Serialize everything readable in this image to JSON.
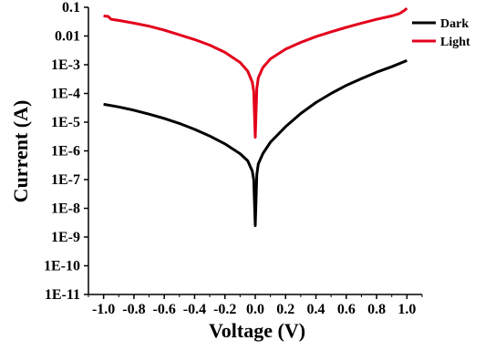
{
  "chart_data": {
    "type": "line",
    "xlabel": "Voltage (V)",
    "ylabel": "Current (A)",
    "x_scale": "linear",
    "y_scale": "log",
    "xlim": [
      -1.1,
      1.1
    ],
    "ylim": [
      1e-11,
      0.1
    ],
    "grid": false,
    "legend_position": "top-right",
    "x_tick_labels": [
      "-1.0",
      "-0.8",
      "-0.6",
      "-0.4",
      "-0.2",
      "0.0",
      "0.2",
      "0.4",
      "0.6",
      "0.8",
      "1.0"
    ],
    "y_tick_labels": [
      "0.1",
      "0.01",
      "1E-3",
      "1E-4",
      "1E-5",
      "1E-6",
      "1E-7",
      "1E-8",
      "1E-9",
      "1E-10",
      "1E-11"
    ],
    "series": [
      {
        "name": "Dark",
        "color": "#000000",
        "points": [
          [
            -1.0,
            4.2e-05
          ],
          [
            -0.9,
            3.4e-05
          ],
          [
            -0.8,
            2.6e-05
          ],
          [
            -0.7,
            1.9e-05
          ],
          [
            -0.6,
            1.35e-05
          ],
          [
            -0.5,
            9e-06
          ],
          [
            -0.4,
            5.6e-06
          ],
          [
            -0.3,
            3.3e-06
          ],
          [
            -0.2,
            1.75e-06
          ],
          [
            -0.1,
            8e-07
          ],
          [
            -0.05,
            4.5e-07
          ],
          [
            -0.02,
            2e-07
          ],
          [
            -0.01,
            1e-07
          ],
          [
            0.0,
            2.5e-09
          ],
          [
            0.01,
            1.5e-07
          ],
          [
            0.02,
            3.5e-07
          ],
          [
            0.05,
            8e-07
          ],
          [
            0.1,
            2e-06
          ],
          [
            0.2,
            7e-06
          ],
          [
            0.3,
            2e-05
          ],
          [
            0.4,
            4.8e-05
          ],
          [
            0.5,
            0.0001
          ],
          [
            0.6,
            0.00019
          ],
          [
            0.7,
            0.00033
          ],
          [
            0.8,
            0.00055
          ],
          [
            0.9,
            0.00085
          ],
          [
            1.0,
            0.0014
          ]
        ]
      },
      {
        "name": "Light",
        "color": "#e3001b",
        "points": [
          [
            -1.0,
            0.05
          ],
          [
            -0.97,
            0.048
          ],
          [
            -0.95,
            0.038
          ],
          [
            -0.9,
            0.035
          ],
          [
            -0.8,
            0.028
          ],
          [
            -0.7,
            0.022
          ],
          [
            -0.6,
            0.016
          ],
          [
            -0.5,
            0.011
          ],
          [
            -0.4,
            0.0075
          ],
          [
            -0.3,
            0.0048
          ],
          [
            -0.2,
            0.0027
          ],
          [
            -0.1,
            0.0012
          ],
          [
            -0.05,
            0.0006
          ],
          [
            -0.02,
            0.00025
          ],
          [
            -0.01,
            0.00012
          ],
          [
            0.0,
            3e-06
          ],
          [
            0.01,
            0.00015
          ],
          [
            0.02,
            0.00035
          ],
          [
            0.05,
            0.0008
          ],
          [
            0.1,
            0.0016
          ],
          [
            0.2,
            0.0035
          ],
          [
            0.3,
            0.006
          ],
          [
            0.4,
            0.0095
          ],
          [
            0.5,
            0.014
          ],
          [
            0.6,
            0.02
          ],
          [
            0.7,
            0.028
          ],
          [
            0.8,
            0.038
          ],
          [
            0.9,
            0.05
          ],
          [
            0.95,
            0.06
          ],
          [
            0.98,
            0.075
          ],
          [
            1.0,
            0.092
          ]
        ]
      }
    ]
  }
}
